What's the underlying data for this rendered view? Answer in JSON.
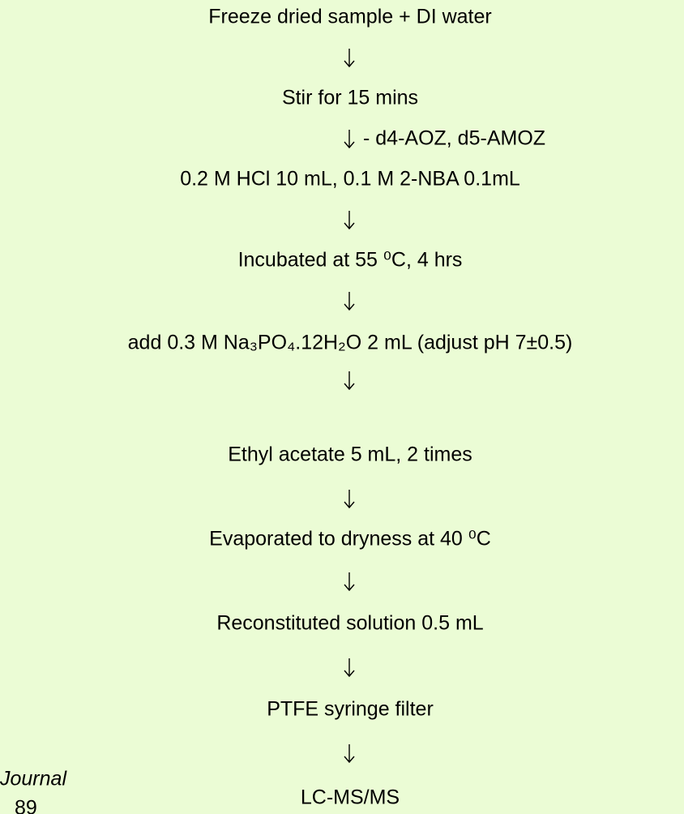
{
  "steps": [
    "Freeze dried sample  + DI water",
    "Stir for 15 mins",
    "0.2 M HCl 10 mL, 0.1 M 2-NBA 0.1mL",
    "Incubated at 55 ⁰C, 4 hrs",
    "add 0.3 M  Na₃PO₄.12H₂O 2 mL (adjust pH 7±0.5)",
    "Ethyl acetate 5 mL, 2 times",
    "Evaporated to dryness at 40 ⁰C",
    "Reconstituted solution 0.5 mL",
    "PTFE syringe filter",
    "LC-MS/MS"
  ],
  "arrow_note": "- d4-AOZ, d5-AMOZ",
  "side_text": [
    "Journal",
    "89"
  ]
}
